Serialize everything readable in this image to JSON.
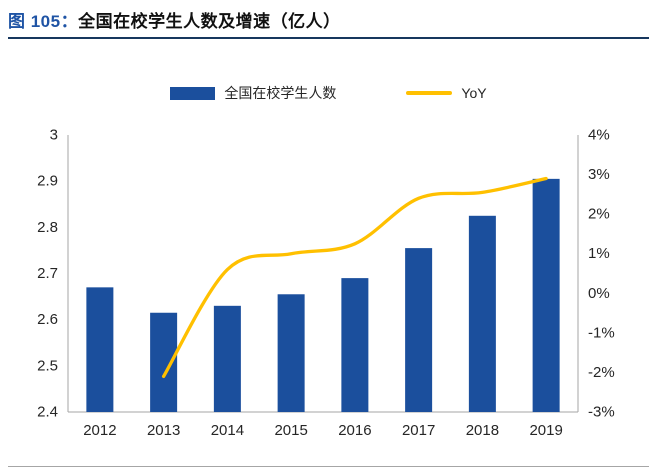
{
  "figure": {
    "label": "图 105：",
    "title": "全国在校学生人数及增速（亿人）"
  },
  "colors": {
    "bar": "#1B4F9D",
    "line": "#FFC000",
    "title_accent": "#1F54A5",
    "header_rule": "#17375E",
    "axis": "#A6A6A6",
    "text": "#262626",
    "divider": "#A6A6A6"
  },
  "legend": [
    {
      "label": "全国在校学生人数",
      "swatch": "bar-swatch"
    },
    {
      "label": "YoY",
      "swatch": "line-swatch"
    }
  ],
  "chart_data": {
    "type": "bar+line",
    "title": "全国在校学生人数及增速（亿人）",
    "categories": [
      "2012",
      "2013",
      "2014",
      "2015",
      "2016",
      "2017",
      "2018",
      "2019"
    ],
    "series": [
      {
        "name": "全国在校学生人数",
        "type": "bar",
        "axis": "left",
        "color": "#1B4F9D",
        "values": [
          2.67,
          2.615,
          2.63,
          2.655,
          2.69,
          2.755,
          2.825,
          2.905
        ]
      },
      {
        "name": "YoY",
        "type": "line",
        "axis": "right",
        "color": "#FFC000",
        "values": [
          null,
          -2.1,
          0.6,
          1.0,
          1.25,
          2.4,
          2.55,
          2.9
        ]
      }
    ],
    "left_axis": {
      "min": 2.4,
      "max": 3.0,
      "ticks": [
        "3",
        "2.9",
        "2.8",
        "2.7",
        "2.6",
        "2.5",
        "2.4"
      ]
    },
    "right_axis": {
      "min": -3,
      "max": 4,
      "ticks": [
        "4%",
        "3%",
        "2%",
        "1%",
        "0%",
        "-1%",
        "-2%",
        "-3%"
      ]
    },
    "grid": false,
    "legend_position": "top-center"
  }
}
